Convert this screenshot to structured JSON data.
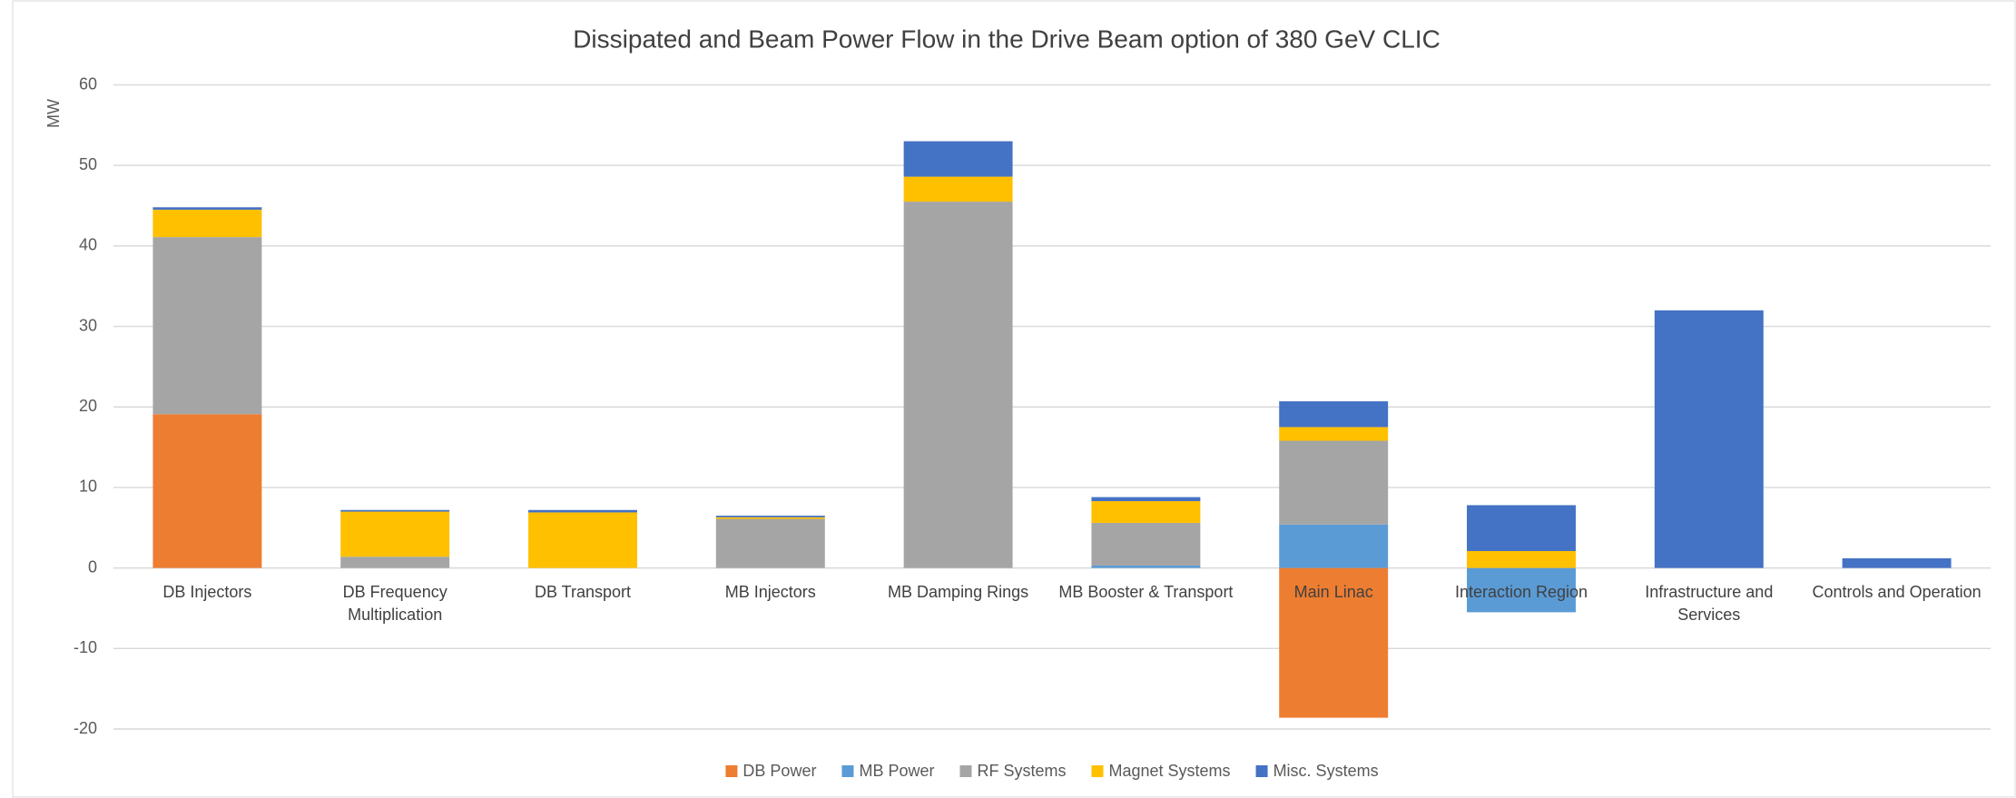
{
  "chart_data": {
    "type": "stacked_bar",
    "title": "Dissipated and Beam Power Flow in the Drive Beam option of 380 GeV CLIC",
    "y_label": "MW",
    "categories": [
      "DB Injectors",
      "DB Frequency Multiplication",
      "DB Transport",
      "MB Injectors",
      "MB Damping Rings",
      "MB Booster & Transport",
      "Main Linac",
      "Interaction Region",
      "Infrastructure and Services",
      "Controls and Operation"
    ],
    "series": [
      {
        "name": "DB Power",
        "color": "#ed7d31",
        "values": [
          19.1,
          null,
          null,
          null,
          null,
          null,
          -18.6,
          null,
          null,
          null
        ]
      },
      {
        "name": "MB Power",
        "color": "#5b9bd5",
        "values": [
          null,
          null,
          null,
          null,
          null,
          0.3,
          5.4,
          -5.5,
          null,
          null
        ]
      },
      {
        "name": "RF Systems",
        "color": "#a5a5a5",
        "values": [
          22.0,
          1.4,
          null,
          6.1,
          45.5,
          5.3,
          10.4,
          null,
          null,
          null
        ]
      },
      {
        "name": "Magnet Systems",
        "color": "#ffc000",
        "values": [
          3.4,
          5.6,
          6.9,
          0.2,
          3.1,
          2.7,
          1.7,
          2.1,
          null,
          null
        ]
      },
      {
        "name": "Misc. Systems",
        "color": "#4472c4",
        "values": [
          0.3,
          0.2,
          0.3,
          0.2,
          4.4,
          0.5,
          3.2,
          5.7,
          32,
          1.2
        ]
      }
    ],
    "ylim": [
      -20,
      60
    ],
    "yticks": [
      -20,
      -10,
      0,
      10,
      20,
      30,
      40,
      50,
      60
    ],
    "grid": true,
    "legend": "bottom"
  }
}
